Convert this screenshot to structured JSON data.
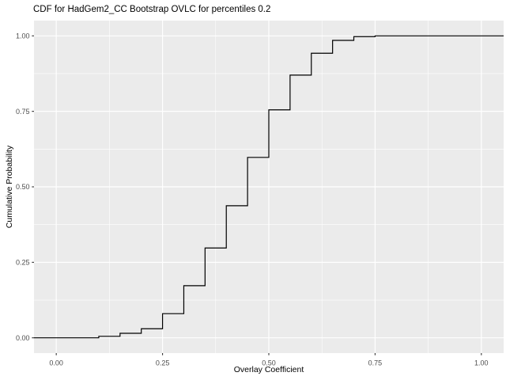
{
  "title": "CDF for HadGem2_CC Bootstrap OVLC for percentiles 0.2",
  "chart_data": {
    "type": "line",
    "subtype": "ecdf-step",
    "title": "CDF for HadGem2_CC Bootstrap OVLC for percentiles 0.2",
    "xlabel": "Overlay Coefficient",
    "ylabel": "Cumulative Probability",
    "x_ticks": [
      0,
      0.25,
      0.5,
      0.75,
      1.0
    ],
    "x_tick_labels": [
      "0.00",
      "0.25",
      "0.50",
      "0.75",
      "1.00"
    ],
    "y_ticks": [
      0,
      0.25,
      0.5,
      0.75,
      1.0
    ],
    "y_tick_labels": [
      "0.00",
      "0.25",
      "0.50",
      "0.75",
      "1.00"
    ],
    "xlim": [
      -0.0524,
      1.0524
    ],
    "ylim": [
      -0.0506,
      1.0506
    ],
    "grid": "major+minor",
    "legend": "none",
    "series": [
      {
        "name": "ECDF",
        "draw": "step",
        "x": [
          0.1,
          0.15,
          0.2,
          0.25,
          0.3,
          0.35,
          0.4,
          0.45,
          0.5,
          0.55,
          0.6,
          0.65,
          0.7,
          0.75
        ],
        "y": [
          0.005,
          0.015,
          0.03,
          0.08,
          0.1725,
          0.2975,
          0.4375,
          0.5975,
          0.755,
          0.87,
          0.9425,
          0.985,
          0.9975,
          1.0
        ],
        "pad_start_y": 0.0,
        "pad_end_y": 1.0
      }
    ],
    "colors": {
      "panel_bg": "#EBEBEB",
      "grid": "#FFFFFF",
      "line": "#000000",
      "axis_text": "#4D4D4D",
      "tick_mark": "#333333",
      "title_text": "#000000",
      "outer_bg": "#FFFFFF"
    }
  }
}
